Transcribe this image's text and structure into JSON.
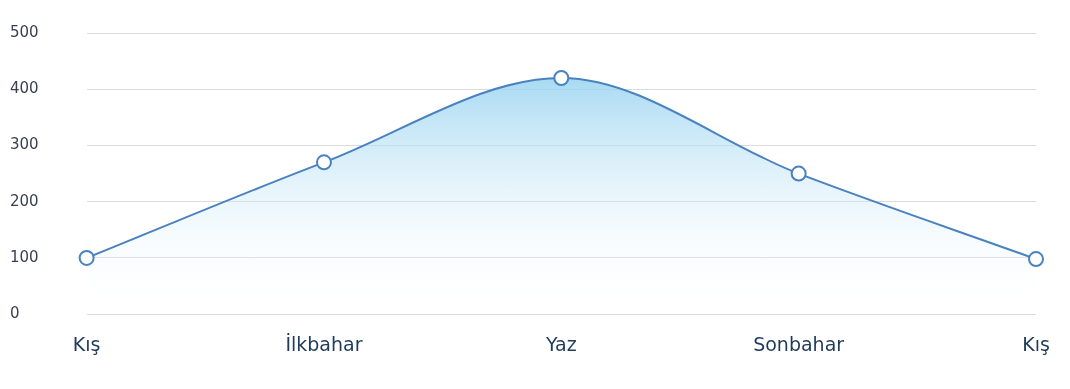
{
  "chart_data": {
    "type": "area",
    "categories": [
      "Kış",
      "İlkbahar",
      "Yaz",
      "Sonbahar",
      "Kış"
    ],
    "series": [
      {
        "color": "#4a82c0",
        "values": [
          100,
          270,
          420,
          250,
          98
        ]
      }
    ],
    "ylim": [
      0,
      500
    ],
    "yticks": [
      0,
      100,
      200,
      300,
      400,
      500
    ],
    "grid": "y",
    "legend": false,
    "marker": "circle",
    "line_style": "solid"
  }
}
